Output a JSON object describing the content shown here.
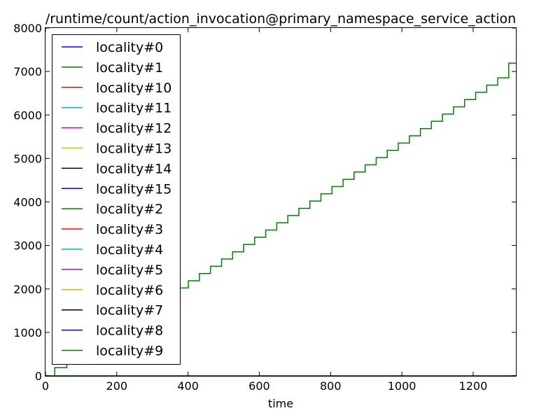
{
  "chart_data": {
    "type": "line",
    "title": "/runtime/count/action_invocation@primary_namespace_service_action",
    "xlabel": "time",
    "ylabel": "",
    "xlim": [
      0,
      1320
    ],
    "ylim": [
      0,
      8000
    ],
    "xticks": [
      0,
      200,
      400,
      600,
      800,
      1000,
      1200
    ],
    "yticks": [
      0,
      1000,
      2000,
      3000,
      4000,
      5000,
      6000,
      7000,
      8000
    ],
    "grid": false,
    "legend_position": "upper-left",
    "series": [
      {
        "name": "locality#0",
        "color": "#0000ff",
        "x": [
          0,
          1320
        ],
        "y": [
          0,
          0
        ]
      },
      {
        "name": "locality#1",
        "color": "#008000",
        "x": [
          0,
          26,
          26,
          60,
          60,
          1300,
          1300,
          1320
        ],
        "y": [
          0,
          0,
          190,
          190,
          355,
          7020,
          7190,
          7190
        ]
      },
      {
        "name": "locality#10",
        "color": "#ff0000",
        "x": [
          0,
          1320
        ],
        "y": [
          0,
          0
        ]
      },
      {
        "name": "locality#11",
        "color": "#00bfbf",
        "x": [
          0,
          1320
        ],
        "y": [
          0,
          0
        ]
      },
      {
        "name": "locality#12",
        "color": "#bf00bf",
        "x": [
          0,
          1320
        ],
        "y": [
          0,
          0
        ]
      },
      {
        "name": "locality#13",
        "color": "#bfbf00",
        "x": [
          0,
          1320
        ],
        "y": [
          0,
          0
        ]
      },
      {
        "name": "locality#14",
        "color": "#000000",
        "x": [
          0,
          1320
        ],
        "y": [
          0,
          0
        ]
      },
      {
        "name": "locality#15",
        "color": "#0000ff",
        "x": [
          0,
          1320
        ],
        "y": [
          0,
          0
        ]
      },
      {
        "name": "locality#2",
        "color": "#008000",
        "x": [
          0,
          1320
        ],
        "y": [
          0,
          0
        ]
      },
      {
        "name": "locality#3",
        "color": "#ff0000",
        "x": [
          0,
          1320
        ],
        "y": [
          0,
          0
        ]
      },
      {
        "name": "locality#4",
        "color": "#00bfbf",
        "x": [
          0,
          1320
        ],
        "y": [
          0,
          0
        ]
      },
      {
        "name": "locality#5",
        "color": "#bf00bf",
        "x": [
          0,
          1320
        ],
        "y": [
          0,
          0
        ]
      },
      {
        "name": "locality#6",
        "color": "#bfbf00",
        "x": [
          0,
          1320
        ],
        "y": [
          0,
          0
        ]
      },
      {
        "name": "locality#7",
        "color": "#000000",
        "x": [
          0,
          1320
        ],
        "y": [
          0,
          0
        ]
      },
      {
        "name": "locality#8",
        "color": "#0000ff",
        "x": [
          0,
          1320
        ],
        "y": [
          0,
          0
        ]
      },
      {
        "name": "locality#9",
        "color": "#008000",
        "x": [
          0,
          1320
        ],
        "y": [
          0,
          0
        ]
      }
    ]
  }
}
